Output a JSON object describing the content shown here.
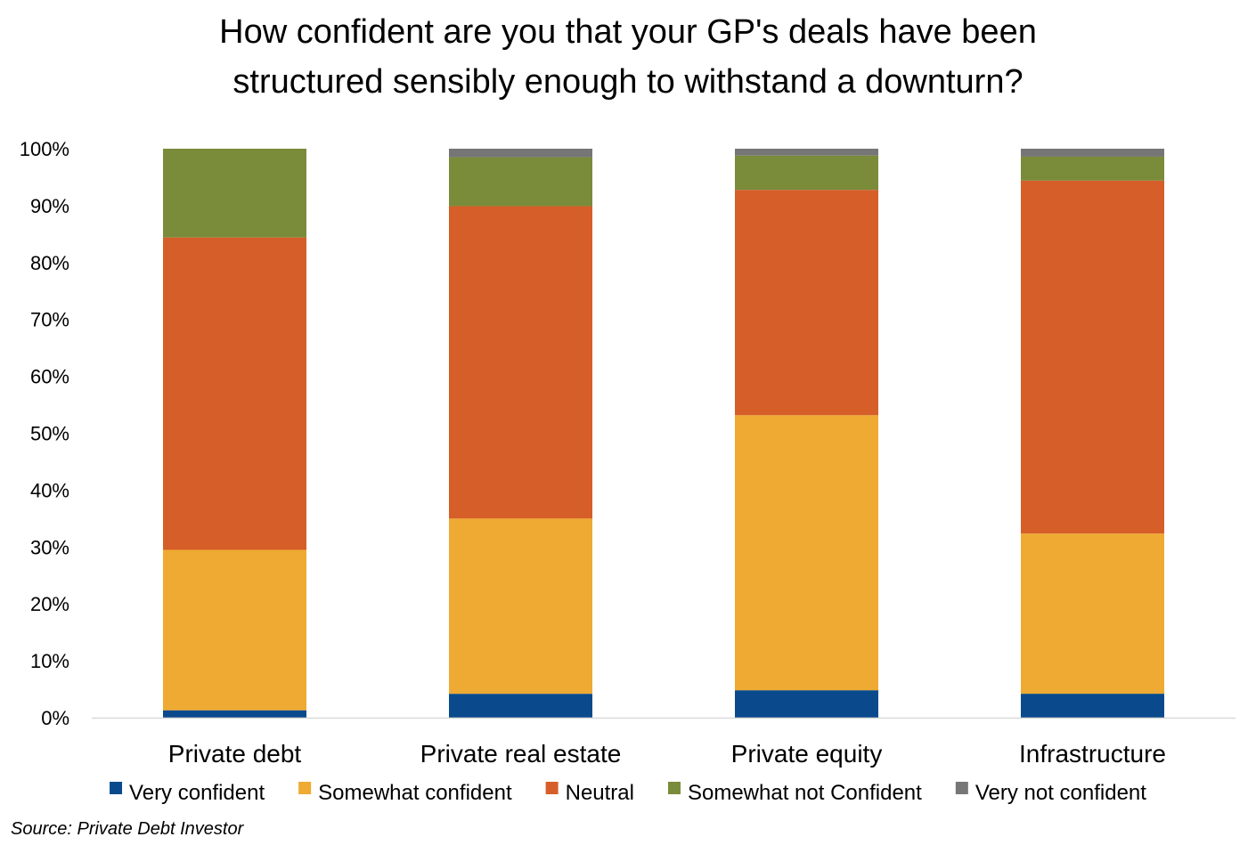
{
  "chart_data": {
    "type": "bar",
    "stacked": true,
    "percent_stacked": true,
    "title_lines": [
      "How confident are you that your GP's deals have been",
      "structured sensibly enough to withstand a downturn?"
    ],
    "categories": [
      "Private debt",
      "Private real estate",
      "Private equity",
      "Infrastructure"
    ],
    "series": [
      {
        "name": "Very confident",
        "color": "#0A4A8C",
        "values": [
          1.3,
          4.2,
          4.8,
          4.2
        ]
      },
      {
        "name": "Somewhat confident",
        "color": "#EEAA32",
        "values": [
          28.2,
          30.8,
          48.1,
          28.1
        ]
      },
      {
        "name": "Neutral",
        "color": "#D65E29",
        "values": [
          54.9,
          54.9,
          39.4,
          61.9
        ]
      },
      {
        "name": "Somewhat not Confident",
        "color": "#7A8B3A",
        "values": [
          15.6,
          8.6,
          6.0,
          4.2
        ]
      },
      {
        "name": "Very not confident",
        "color": "#767676",
        "values": [
          0.0,
          1.5,
          1.2,
          1.4
        ]
      }
    ],
    "y_ticks": [
      "0%",
      "10%",
      "20%",
      "30%",
      "40%",
      "50%",
      "60%",
      "70%",
      "80%",
      "90%",
      "100%"
    ],
    "ylim": [
      0,
      100
    ],
    "grid": false,
    "legend_position": "bottom"
  },
  "source": "Source: Private Debt Investor"
}
